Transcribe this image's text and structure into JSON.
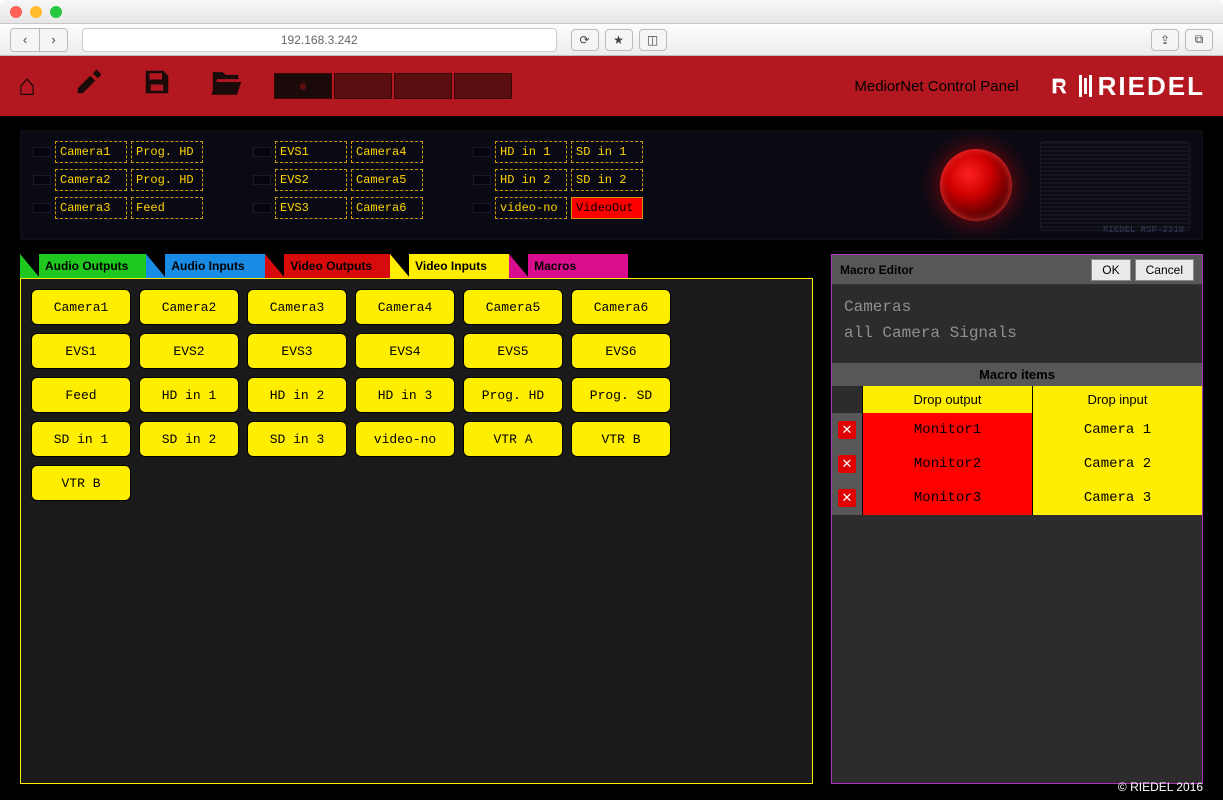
{
  "browser": {
    "url": "192.168.3.242",
    "nav_back": "‹",
    "nav_fwd": "›",
    "reload": "⟳",
    "reader": "≡",
    "share": "⇧",
    "tabs": "⊞",
    "newtab": "＋"
  },
  "header": {
    "title": "MediorNet Control Panel",
    "brand": "RIEDEL",
    "hw_model": "RIEDEL RSP-2318"
  },
  "hw_panel": {
    "col1": [
      [
        "Camera1",
        "Prog. HD"
      ],
      [
        "Camera2",
        "Prog. HD"
      ],
      [
        "Camera3",
        "Feed"
      ]
    ],
    "col2": [
      [
        "EVS1",
        "Camera4"
      ],
      [
        "EVS2",
        "Camera5"
      ],
      [
        "EVS3",
        "Camera6"
      ]
    ],
    "col3": [
      [
        "HD in 1",
        "SD in 1"
      ],
      [
        "HD in 2",
        "SD in 2"
      ],
      [
        "video-no",
        "VideoOut"
      ]
    ],
    "highlight": {
      "col": 3,
      "row": 2,
      "side": 1
    }
  },
  "tabs": [
    {
      "label": "Audio Outputs",
      "color": "green"
    },
    {
      "label": "Audio Inputs",
      "color": "blue"
    },
    {
      "label": "Video Outputs",
      "color": "red"
    },
    {
      "label": "Video Inputs",
      "color": "yellow",
      "active": true
    },
    {
      "label": "Macros",
      "color": "mag"
    }
  ],
  "grid_items": [
    "Camera1",
    "Camera2",
    "Camera3",
    "Camera4",
    "Camera5",
    "Camera6",
    "EVS1",
    "EVS2",
    "EVS3",
    "EVS4",
    "EVS5",
    "EVS6",
    "Feed",
    "HD in 1",
    "HD in 2",
    "HD in 3",
    "Prog. HD",
    "Prog. SD",
    "SD in 1",
    "SD in 2",
    "SD in 3",
    "video-no",
    "VTR A",
    "VTR B",
    "VTR B"
  ],
  "editor": {
    "title": "Macro Editor",
    "ok": "OK",
    "cancel": "Cancel",
    "text": "Cameras\nall Camera Signals",
    "section": "Macro items",
    "col_out": "Drop output",
    "col_in": "Drop input",
    "rows": [
      {
        "out": "Monitor1",
        "inp": "Camera 1"
      },
      {
        "out": "Monitor2",
        "inp": "Camera 2"
      },
      {
        "out": "Monitor3",
        "inp": "Camera 3"
      }
    ]
  },
  "footer": "© RIEDEL 2016",
  "colors": {
    "redbar": "#b31820",
    "yellow": "#ffee00",
    "hi_red": "#ff0000",
    "tab_green": "#00d400",
    "tab_blue": "#0090ff",
    "tab_mag": "#ff00a0",
    "panel_border": "#b030c0",
    "black": "#000000",
    "dark": "#1a1a1a"
  }
}
